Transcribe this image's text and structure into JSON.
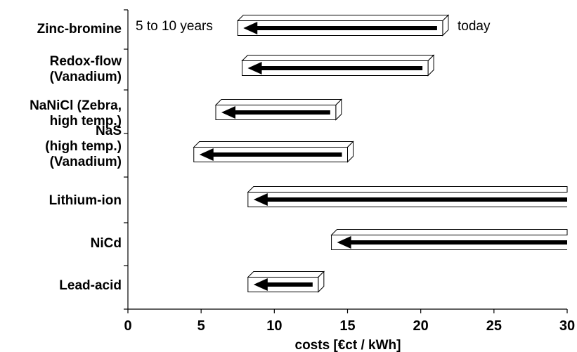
{
  "chart_data": {
    "type": "range-bar",
    "xlabel": "costs [€ct / kWh]",
    "xlim": [
      0,
      30
    ],
    "xticks": [
      0,
      5,
      10,
      15,
      20,
      25,
      30
    ],
    "categories": [
      {
        "lines": [
          "Zinc-bromine"
        ],
        "today": 21.5,
        "future": 7.5
      },
      {
        "lines": [
          "Redox-flow",
          "(Vanadium)"
        ],
        "today": 20.5,
        "future": 7.8
      },
      {
        "lines": [
          "NaNiCl (Zebra,",
          "high temp.)"
        ],
        "today": 14.2,
        "future": 6.0
      },
      {
        "lines": [
          "NaS",
          "(high temp.)",
          "(Vanadium)"
        ],
        "today": 15.0,
        "future": 4.5
      },
      {
        "lines": [
          "Lithium-ion"
        ],
        "today": 30,
        "future": 8.2
      },
      {
        "lines": [
          "NiCd"
        ],
        "today": 30,
        "future": 13.9
      },
      {
        "lines": [
          "Lead-acid"
        ],
        "today": 13.0,
        "future": 8.2
      }
    ],
    "annotations": {
      "future_label": "5 to 10 years",
      "today_label": "today"
    },
    "grid": false,
    "legend": "none"
  }
}
